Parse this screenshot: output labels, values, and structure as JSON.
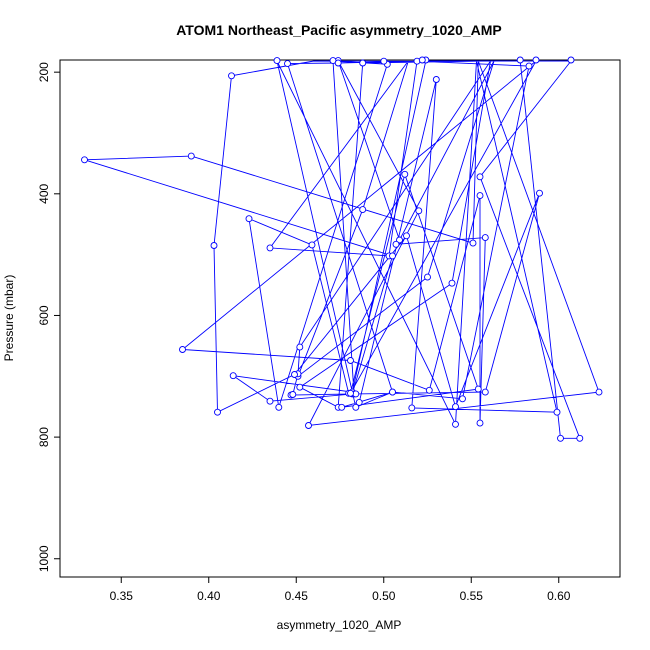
{
  "chart_data": {
    "type": "line",
    "title": "ATOM1 Northeast_Pacific asymmetry_1020_AMP",
    "xlabel": "asymmetry_1020_AMP",
    "ylabel": "Pressure (mbar)",
    "xlim": [
      0.315,
      0.635
    ],
    "ylim": [
      1030,
      180
    ],
    "y_reversed": true,
    "x_ticks": [
      "0.35",
      "0.40",
      "0.45",
      "0.50",
      "0.55",
      "0.60"
    ],
    "y_ticks": [
      "200",
      "400",
      "600",
      "800",
      "1000"
    ],
    "grid": false,
    "line_color": "#0000ff",
    "marker": "open-circle",
    "x": [
      0.486,
      0.53,
      0.516,
      0.599,
      0.553,
      0.541,
      0.439,
      0.484,
      0.505,
      0.545,
      0.583,
      0.519,
      0.503,
      0.435,
      0.514,
      0.488,
      0.451,
      0.525,
      0.563,
      0.509,
      0.474,
      0.52,
      0.457,
      0.623,
      0.554,
      0.551,
      0.39,
      0.329,
      0.505,
      0.482,
      0.447,
      0.448,
      0.451,
      0.452,
      0.561,
      0.488,
      0.474,
      0.452,
      0.539,
      0.561,
      0.568,
      0.524,
      0.482,
      0.414,
      0.435,
      0.483,
      0.471,
      0.502,
      0.44,
      0.423,
      0.459,
      0.48,
      0.484,
      0.558,
      0.589,
      0.541,
      0.513,
      0.449,
      0.405,
      0.403,
      0.413,
      0.46,
      0.5,
      0.607,
      0.555,
      0.612,
      0.601,
      0.578,
      0.522,
      0.474,
      0.445,
      0.505,
      0.476,
      0.554,
      0.512,
      0.481,
      0.587,
      0.385,
      0.481,
      0.526,
      0.555,
      0.555,
      0.558,
      0.507
    ],
    "y": [
      743,
      212,
      752,
      759,
      179,
      779,
      181,
      751,
      726,
      737,
      190,
      182,
      502,
      489,
      179,
      426,
      700,
      537,
      179,
      476,
      181,
      428,
      781,
      726,
      179,
      481,
      338,
      344,
      502,
      729,
      731,
      730,
      696,
      652,
      179,
      185,
      751,
      718,
      547,
      179,
      179,
      180,
      726,
      699,
      741,
      729,
      181,
      187,
      751,
      441,
      484,
      728,
      729,
      726,
      399,
      750,
      469,
      697,
      759,
      485,
      206,
      178,
      182,
      180,
      372,
      802,
      802,
      180,
      180,
      185,
      186,
      726,
      751,
      721,
      368,
      728,
      180,
      656,
      674,
      723,
      403,
      777,
      472,
      483
    ]
  }
}
